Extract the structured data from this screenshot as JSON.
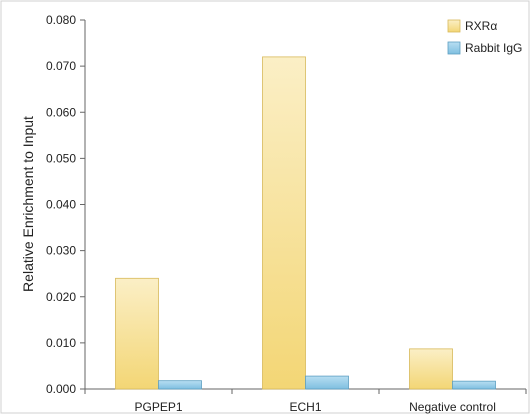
{
  "chart_data": {
    "type": "bar",
    "title": "",
    "xlabel": "",
    "ylabel": "Relative Enrichment to Input",
    "categories": [
      "PGPEP1",
      "ECH1",
      "Negative control"
    ],
    "series": [
      {
        "name": "RXRα",
        "values": [
          0.024,
          0.072,
          0.0087
        ],
        "color": "#f2d678"
      },
      {
        "name": "Rabbit IgG",
        "values": [
          0.0018,
          0.0028,
          0.0017
        ],
        "color": "#8cc6e4"
      }
    ],
    "ylim": [
      0,
      0.08
    ],
    "yticks": [
      "0.000",
      "0.010",
      "0.020",
      "0.030",
      "0.040",
      "0.050",
      "0.060",
      "0.070",
      "0.080"
    ],
    "grid": false,
    "legend_position": "top-right"
  }
}
